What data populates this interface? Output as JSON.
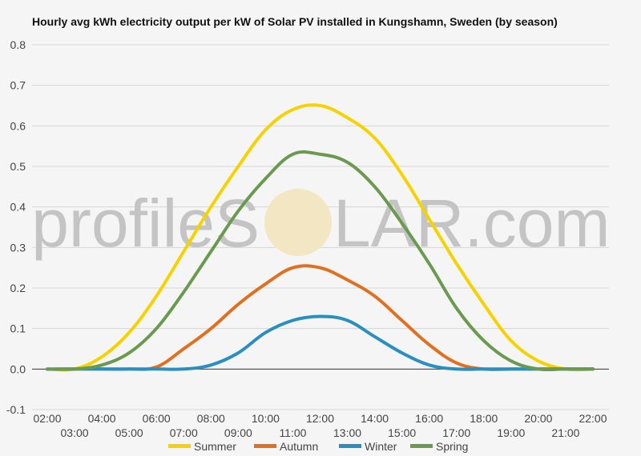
{
  "chart_data": {
    "type": "line",
    "title": "Hourly avg kWh electricity output per kW of Solar PV installed in Kungshamn, Sweden (by season)",
    "x": [
      "02:00",
      "03:00",
      "04:00",
      "05:00",
      "06:00",
      "07:00",
      "08:00",
      "09:00",
      "10:00",
      "11:00",
      "12:00",
      "13:00",
      "14:00",
      "15:00",
      "16:00",
      "17:00",
      "18:00",
      "19:00",
      "20:00",
      "21:00",
      "22:00"
    ],
    "ylim": [
      -0.1,
      0.8
    ],
    "yticks": [
      -0.1,
      0.0,
      0.1,
      0.2,
      0.3,
      0.4,
      0.5,
      0.6,
      0.7,
      0.8
    ],
    "ytick_labels": [
      "-0.1",
      "0.0",
      "0.1",
      "0.2",
      "0.3",
      "0.4",
      "0.5",
      "0.6",
      "0.7",
      "0.8"
    ],
    "grid": true,
    "legend_position": "bottom",
    "series": [
      {
        "name": "Summer",
        "color": "#f5d200",
        "values": [
          0.0,
          0.0,
          0.03,
          0.09,
          0.18,
          0.29,
          0.4,
          0.5,
          0.59,
          0.64,
          0.65,
          0.62,
          0.57,
          0.48,
          0.37,
          0.26,
          0.16,
          0.07,
          0.02,
          0.0,
          0.0
        ]
      },
      {
        "name": "Autumn",
        "color": "#e07020",
        "values": [
          0.0,
          0.0,
          0.0,
          0.0,
          0.005,
          0.05,
          0.1,
          0.16,
          0.21,
          0.25,
          0.25,
          0.22,
          0.18,
          0.12,
          0.06,
          0.015,
          0.0,
          0.0,
          0.0,
          0.0,
          0.0
        ]
      },
      {
        "name": "Winter",
        "color": "#2a8fc0",
        "values": [
          0.0,
          0.0,
          0.0,
          0.0,
          0.0,
          0.0,
          0.01,
          0.04,
          0.09,
          0.12,
          0.13,
          0.12,
          0.08,
          0.04,
          0.01,
          0.0,
          0.0,
          0.0,
          0.0,
          0.0,
          0.0
        ]
      },
      {
        "name": "Spring",
        "color": "#6a9a50",
        "values": [
          0.0,
          0.0,
          0.01,
          0.04,
          0.1,
          0.19,
          0.29,
          0.39,
          0.47,
          0.53,
          0.53,
          0.51,
          0.45,
          0.36,
          0.26,
          0.15,
          0.07,
          0.02,
          0.0,
          0.0,
          0.0
        ]
      }
    ],
    "watermark": {
      "part1": "profileS",
      "part2": "LAR.com"
    }
  }
}
